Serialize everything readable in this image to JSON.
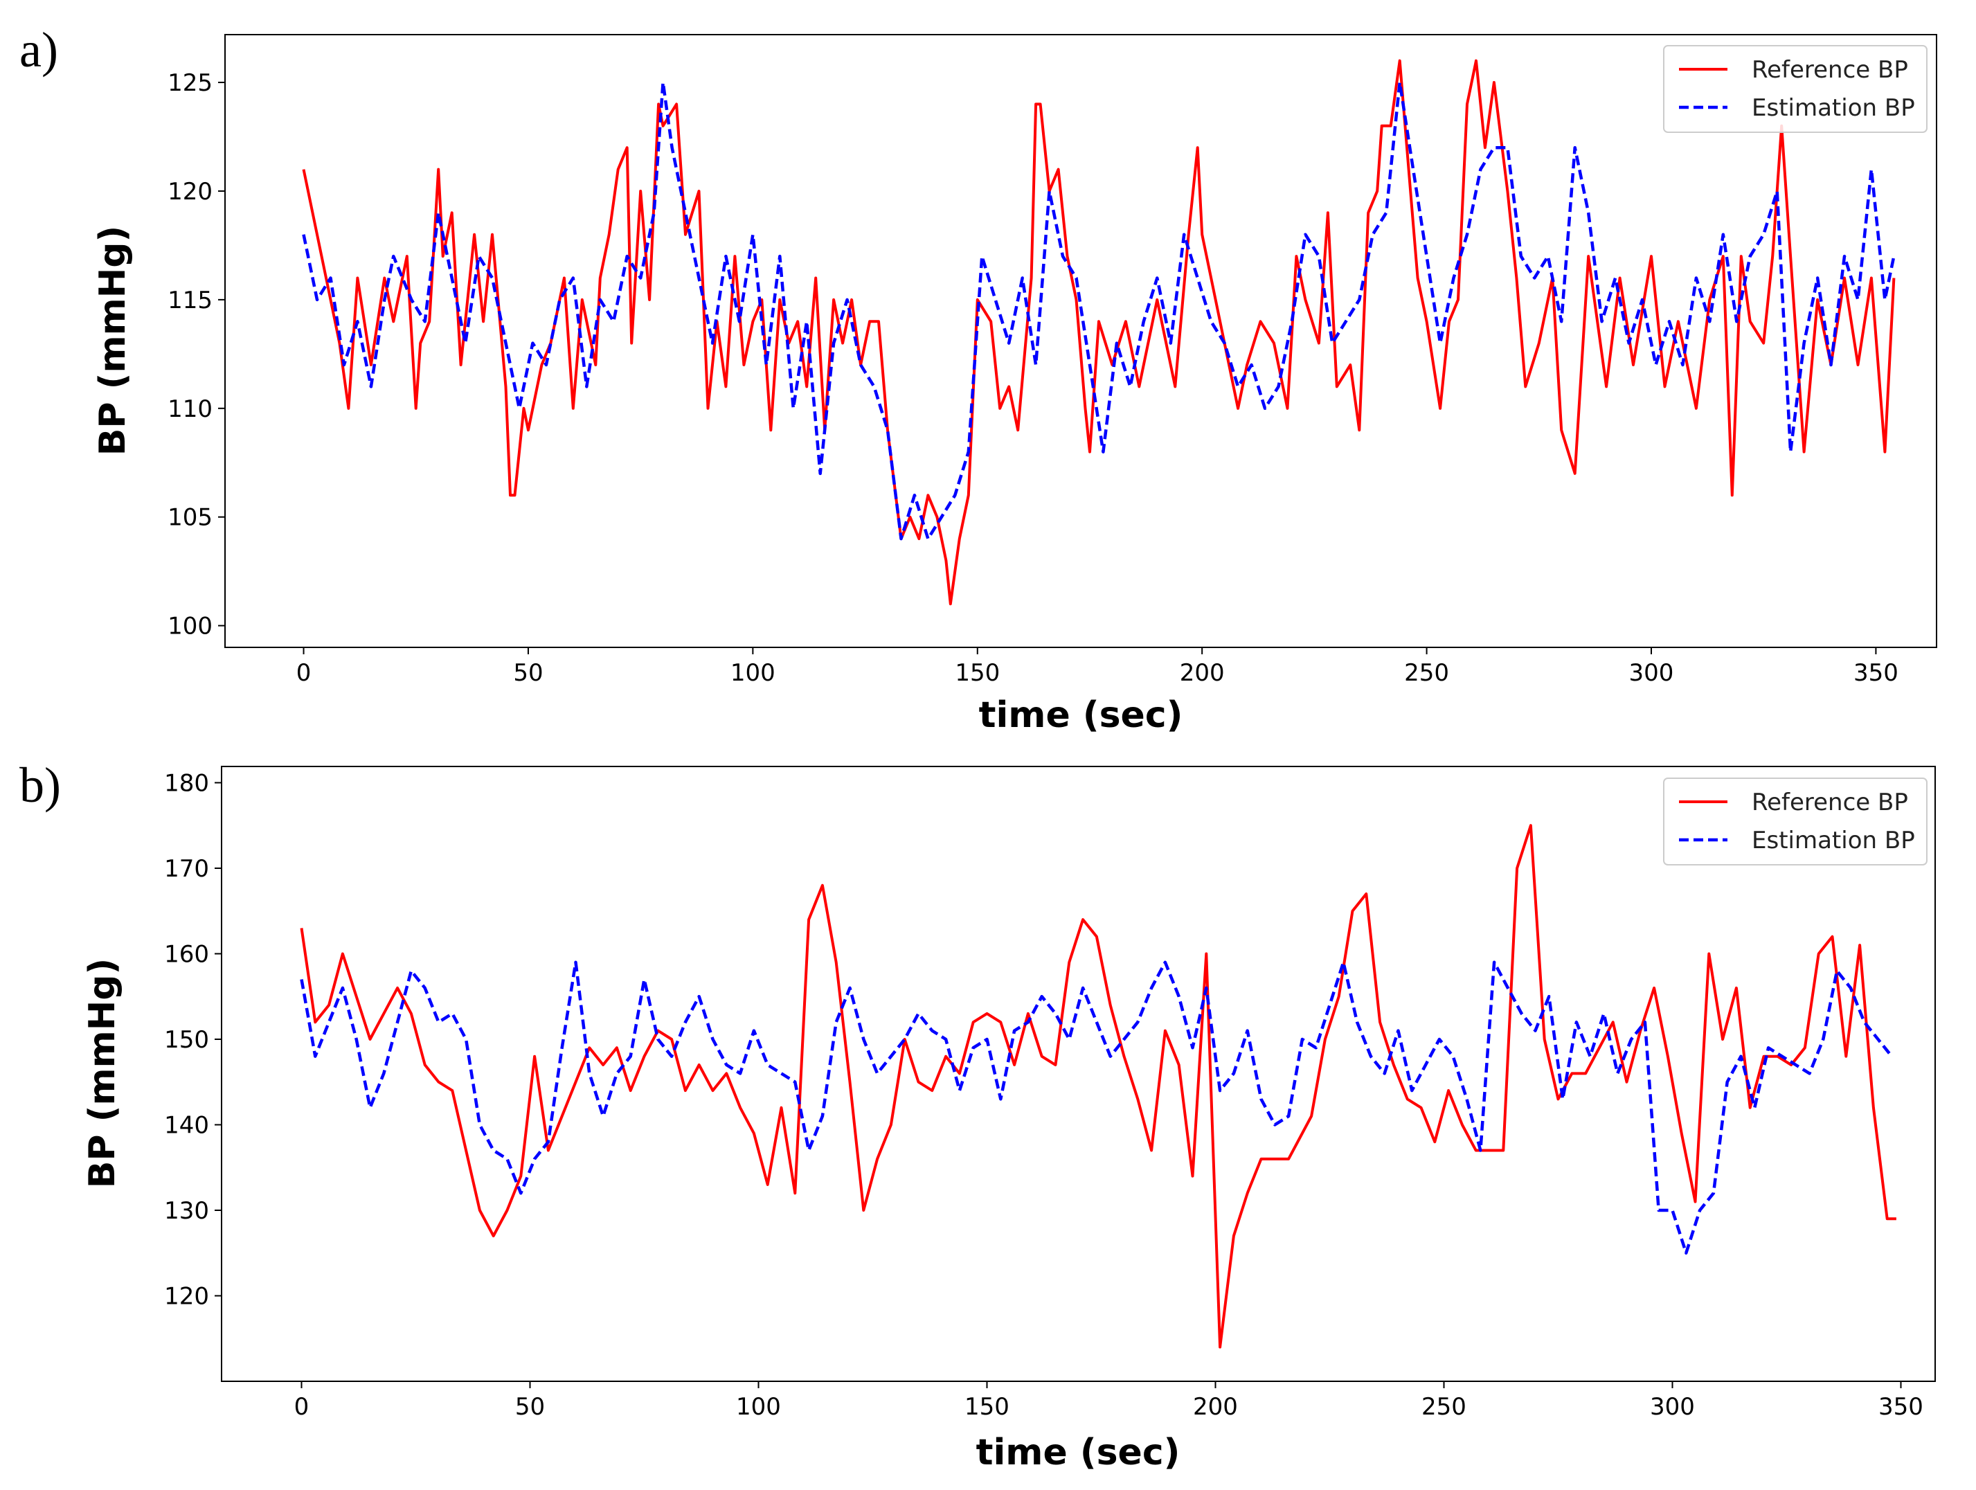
{
  "colors": {
    "reference": "#ff0000",
    "estimation": "#0000ff"
  },
  "chart_data": [
    {
      "panel_label": "a)",
      "type": "line",
      "xlabel": "time (sec)",
      "ylabel": "BP (mmHg)",
      "xlim": [
        -17.5,
        363.5
      ],
      "ylim": [
        99.0,
        127.2
      ],
      "xticks": [
        0,
        50,
        100,
        150,
        200,
        250,
        300,
        350
      ],
      "yticks": [
        100,
        105,
        110,
        115,
        120,
        125
      ],
      "legend_position": "top-right",
      "series": [
        {
          "name": "Reference BP",
          "style": "solid",
          "x": [
            0,
            5,
            8,
            10,
            12,
            15,
            18,
            20,
            23,
            25,
            26,
            28,
            30,
            31,
            33,
            35,
            38,
            40,
            42,
            45,
            46,
            47,
            49,
            50,
            53,
            55,
            58,
            60,
            62,
            65,
            66,
            68,
            70,
            72,
            73,
            75,
            77,
            79,
            80,
            83,
            85,
            88,
            90,
            92,
            94,
            96,
            98,
            100,
            102,
            104,
            106,
            108,
            110,
            112,
            114,
            116,
            118,
            120,
            122,
            124,
            126,
            128,
            130,
            133,
            135,
            137,
            139,
            141,
            143,
            144,
            146,
            148,
            150,
            153,
            155,
            157,
            159,
            162,
            163,
            164,
            166,
            168,
            170,
            172,
            174,
            175,
            177,
            180,
            183,
            186,
            190,
            194,
            197,
            199,
            200,
            202,
            205,
            208,
            210,
            213,
            216,
            219,
            221,
            223,
            226,
            228,
            230,
            233,
            235,
            237,
            239,
            240,
            242,
            244,
            246,
            248,
            250,
            253,
            255,
            257,
            259,
            261,
            263,
            265,
            268,
            270,
            272,
            275,
            278,
            280,
            283,
            286,
            290,
            293,
            296,
            300,
            303,
            306,
            310,
            313,
            316,
            318,
            320,
            322,
            325,
            327,
            329,
            331,
            334,
            337,
            340,
            343,
            346,
            349,
            352,
            354
          ],
          "y": [
            121,
            116,
            113,
            110,
            116,
            112,
            116,
            114,
            117,
            110,
            113,
            114,
            121,
            117,
            119,
            112,
            118,
            114,
            118,
            111,
            106,
            106,
            110,
            109,
            112,
            113,
            116,
            110,
            115,
            112,
            116,
            118,
            121,
            122,
            113,
            120,
            115,
            124,
            123,
            124,
            118,
            120,
            110,
            114,
            111,
            117,
            112,
            114,
            115,
            109,
            115,
            113,
            114,
            111,
            116,
            109,
            115,
            113,
            115,
            112,
            114,
            114,
            109,
            104,
            105,
            104,
            106,
            105,
            103,
            101,
            104,
            106,
            115,
            114,
            110,
            111,
            109,
            116,
            124,
            124,
            120,
            121,
            117,
            115,
            110,
            108,
            114,
            112,
            114,
            111,
            115,
            111,
            118,
            122,
            118,
            116,
            113,
            110,
            112,
            114,
            113,
            110,
            117,
            115,
            113,
            119,
            111,
            112,
            109,
            119,
            120,
            123,
            123,
            126,
            121,
            116,
            114,
            110,
            114,
            115,
            124,
            126,
            122,
            125,
            120,
            116,
            111,
            113,
            116,
            109,
            107,
            117,
            111,
            116,
            112,
            117,
            111,
            114,
            110,
            115,
            117,
            106,
            117,
            114,
            113,
            117,
            123,
            117,
            108,
            115,
            112,
            116,
            112,
            116,
            108,
            116
          ]
        },
        {
          "name": "Estimation BP",
          "style": "dashed",
          "x": [
            0,
            3,
            6,
            9,
            12,
            15,
            18,
            20,
            24,
            27,
            30,
            33,
            36,
            39,
            42,
            45,
            48,
            51,
            54,
            57,
            60,
            63,
            66,
            69,
            72,
            75,
            78,
            80,
            82,
            85,
            88,
            91,
            94,
            97,
            100,
            103,
            106,
            109,
            112,
            115,
            118,
            121,
            124,
            127,
            130,
            133,
            136,
            139,
            142,
            145,
            148,
            151,
            154,
            157,
            160,
            163,
            166,
            169,
            172,
            175,
            178,
            181,
            184,
            187,
            190,
            193,
            196,
            199,
            202,
            205,
            208,
            211,
            214,
            217,
            220,
            223,
            226,
            229,
            232,
            235,
            238,
            241,
            244,
            247,
            250,
            253,
            256,
            259,
            262,
            265,
            268,
            271,
            274,
            277,
            280,
            283,
            286,
            289,
            292,
            295,
            298,
            301,
            304,
            307,
            310,
            313,
            316,
            319,
            322,
            325,
            328,
            331,
            334,
            337,
            340,
            343,
            346,
            349,
            352,
            354
          ],
          "y": [
            118,
            115,
            116,
            112,
            114,
            111,
            115,
            117,
            115,
            114,
            119,
            116,
            113,
            117,
            116,
            113,
            110,
            113,
            112,
            115,
            116,
            111,
            115,
            114,
            117,
            116,
            119,
            125,
            122,
            119,
            116,
            113,
            117,
            114,
            118,
            112,
            117,
            110,
            114,
            107,
            113,
            115,
            112,
            111,
            109,
            104,
            106,
            104,
            105,
            106,
            108,
            117,
            115,
            113,
            116,
            112,
            120,
            117,
            116,
            112,
            108,
            113,
            111,
            114,
            116,
            113,
            118,
            116,
            114,
            113,
            111,
            112,
            110,
            111,
            114,
            118,
            117,
            113,
            114,
            115,
            118,
            119,
            125,
            121,
            117,
            113,
            116,
            118,
            121,
            122,
            122,
            117,
            116,
            117,
            114,
            122,
            119,
            114,
            116,
            113,
            115,
            112,
            114,
            112,
            116,
            114,
            118,
            114,
            117,
            118,
            120,
            108,
            113,
            116,
            112,
            117,
            115,
            121,
            115,
            117
          ]
        }
      ]
    },
    {
      "panel_label": "b)",
      "type": "line",
      "xlabel": "time (sec)",
      "ylabel": "BP (mmHg)",
      "xlim": [
        -17.5,
        357.5
      ],
      "ylim": [
        110.0,
        181.9
      ],
      "xticks": [
        0,
        50,
        100,
        150,
        200,
        250,
        300,
        350
      ],
      "yticks": [
        120,
        130,
        140,
        150,
        160,
        170,
        180
      ],
      "legend_position": "top-right",
      "series": [
        {
          "name": "Reference BP",
          "style": "solid",
          "x": [
            0,
            3,
            6,
            9,
            12,
            15,
            18,
            21,
            24,
            27,
            30,
            33,
            36,
            39,
            42,
            45,
            48,
            51,
            54,
            57,
            60,
            63,
            66,
            69,
            72,
            75,
            78,
            81,
            84,
            87,
            90,
            93,
            96,
            99,
            102,
            105,
            108,
            111,
            114,
            117,
            120,
            123,
            126,
            129,
            132,
            135,
            138,
            141,
            144,
            147,
            150,
            153,
            156,
            159,
            162,
            165,
            168,
            171,
            174,
            177,
            180,
            183,
            186,
            189,
            192,
            195,
            198,
            201,
            204,
            207,
            210,
            213,
            216,
            218,
            221,
            224,
            227,
            230,
            233,
            236,
            239,
            242,
            245,
            248,
            251,
            254,
            257,
            260,
            263,
            266,
            269,
            272,
            275,
            278,
            281,
            284,
            287,
            290,
            293,
            296,
            299,
            302,
            305,
            308,
            311,
            314,
            317,
            320,
            323,
            326,
            329,
            332,
            335,
            338,
            341,
            344,
            347,
            349
          ],
          "y": [
            163,
            152,
            154,
            160,
            155,
            150,
            153,
            156,
            153,
            147,
            145,
            144,
            137,
            130,
            127,
            130,
            134,
            148,
            137,
            141,
            145,
            149,
            147,
            149,
            144,
            148,
            151,
            150,
            144,
            147,
            144,
            146,
            142,
            139,
            133,
            142,
            132,
            164,
            168,
            159,
            145,
            130,
            136,
            140,
            150,
            145,
            144,
            148,
            146,
            152,
            153,
            152,
            147,
            153,
            148,
            147,
            159,
            164,
            162,
            154,
            148,
            143,
            137,
            151,
            147,
            134,
            160,
            114,
            127,
            132,
            136,
            136,
            136,
            138,
            141,
            150,
            155,
            165,
            167,
            152,
            147,
            143,
            142,
            138,
            144,
            140,
            137,
            137,
            137,
            170,
            175,
            150,
            143,
            146,
            146,
            149,
            152,
            145,
            151,
            156,
            148,
            139,
            131,
            160,
            150,
            156,
            142,
            148,
            148,
            147,
            149,
            160,
            162,
            148,
            161,
            142,
            129,
            129
          ]
        },
        {
          "name": "Estimation BP",
          "style": "dashed",
          "x": [
            0,
            3,
            6,
            9,
            12,
            15,
            18,
            21,
            24,
            27,
            30,
            33,
            36,
            39,
            42,
            45,
            48,
            51,
            54,
            57,
            60,
            63,
            66,
            69,
            72,
            75,
            78,
            81,
            84,
            87,
            90,
            93,
            96,
            99,
            102,
            105,
            108,
            111,
            114,
            117,
            120,
            123,
            126,
            129,
            132,
            135,
            138,
            141,
            144,
            147,
            150,
            153,
            156,
            159,
            162,
            165,
            168,
            171,
            174,
            177,
            180,
            183,
            186,
            189,
            192,
            195,
            198,
            201,
            204,
            207,
            210,
            213,
            216,
            219,
            222,
            225,
            228,
            231,
            234,
            237,
            240,
            243,
            246,
            249,
            252,
            255,
            258,
            261,
            264,
            267,
            270,
            273,
            276,
            279,
            282,
            285,
            288,
            291,
            294,
            297,
            300,
            303,
            306,
            309,
            312,
            315,
            318,
            321,
            324,
            327,
            330,
            333,
            336,
            339,
            342,
            345,
            348
          ],
          "y": [
            157,
            148,
            152,
            156,
            150,
            142,
            146,
            152,
            158,
            156,
            152,
            153,
            150,
            140,
            137,
            136,
            132,
            136,
            138,
            149,
            159,
            146,
            141,
            146,
            148,
            157,
            150,
            148,
            152,
            155,
            150,
            147,
            146,
            151,
            147,
            146,
            145,
            137,
            141,
            152,
            156,
            150,
            146,
            148,
            150,
            153,
            151,
            150,
            144,
            149,
            150,
            143,
            151,
            152,
            155,
            153,
            150,
            156,
            152,
            148,
            150,
            152,
            156,
            159,
            155,
            149,
            156,
            144,
            146,
            151,
            143,
            140,
            141,
            150,
            149,
            154,
            159,
            152,
            148,
            146,
            151,
            144,
            147,
            150,
            148,
            143,
            137,
            159,
            156,
            153,
            151,
            155,
            143,
            152,
            148,
            153,
            146,
            150,
            152,
            130,
            130,
            125,
            130,
            132,
            145,
            148,
            142,
            149,
            148,
            147,
            146,
            150,
            158,
            156,
            152,
            150,
            148
          ]
        }
      ]
    }
  ]
}
